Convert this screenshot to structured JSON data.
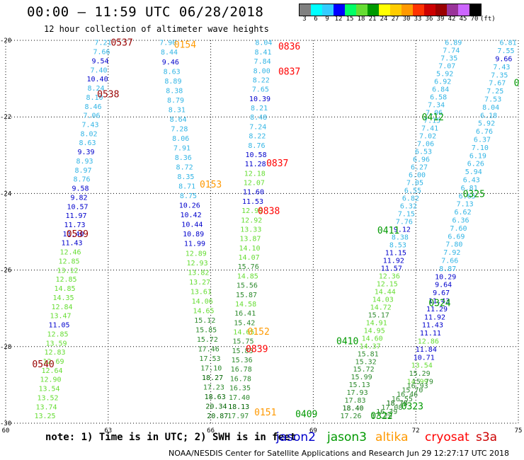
{
  "title": "00:00 – 11:59 UTC 06/28/2018",
  "subtitle": "12 hour collection of altimeter wave heights",
  "color_scale": {
    "labels": [
      "3",
      "6",
      "9",
      "12",
      "15",
      "18",
      "21",
      "24",
      "27",
      "30",
      "33",
      "36",
      "39",
      "42",
      "45",
      "70",
      "(ft)"
    ],
    "colors": [
      "#808080",
      "#00ffff",
      "#33ccff",
      "#0000ff",
      "#00ff66",
      "#66dd33",
      "#009900",
      "#ffff00",
      "#ffcc00",
      "#ff9900",
      "#ff3300",
      "#cc0000",
      "#990000",
      "#993399",
      "#cc66ff",
      "#000000"
    ]
  },
  "note": "note:  1) Time is in UTC;  2) SWH is in feet",
  "footer": "NOAA/NESDIS Center for Satellite Applications and Research   Jun 29 12:27:17 UTC 2018",
  "satellites": [
    {
      "name": "jason2",
      "color": "#0000cc"
    },
    {
      "name": "jason3",
      "color": "#009900"
    },
    {
      "name": "altika",
      "color": "#ff9900"
    },
    {
      "name": "cryosat",
      "color": "#ff0000"
    },
    {
      "name": "s3a",
      "color": "#cc0000"
    }
  ],
  "chart_data": {
    "type": "scatter",
    "xlim": [
      60,
      75
    ],
    "ylim": [
      -30,
      -20
    ],
    "xticks": [
      "60",
      "63",
      "66",
      "69",
      "72",
      "75"
    ],
    "yticks": [
      "-20",
      "-22",
      "-24",
      "-26",
      "-28",
      "-30"
    ],
    "grid": true,
    "tracks": [
      {
        "x0": 62.85,
        "y0": -20.05,
        "x1": 61.15,
        "y1": -29.8,
        "values": [
          "7.21",
          "7.66",
          "9.54",
          "7.40",
          "10.40",
          "8.24",
          "8.10",
          "8.46",
          "7.06",
          "7.43",
          "8.02",
          "8.63",
          "9.39",
          "8.93",
          "8.97",
          "8.76",
          "9.58",
          "9.82",
          "10.57",
          "11.97",
          "11.73",
          "11.40",
          "11.43",
          "12.46",
          "12.85",
          "13.12",
          "12.85",
          "14.85",
          "14.35",
          "12.84",
          "13.47",
          "11.05",
          "12.85",
          "13.59",
          "12.83",
          "12.69",
          "12.64",
          "12.90",
          "13.54",
          "13.52",
          "13.74",
          "13.25"
        ]
      },
      {
        "x0": 64.75,
        "y0": -20.05,
        "x1": 66.2,
        "y1": -29.8,
        "values": [
          "7.90",
          "8.44",
          "9.46",
          "8.63",
          "8.89",
          "8.38",
          "8.79",
          "8.31",
          "8.64",
          "7.28",
          "8.06",
          "7.91",
          "8.36",
          "8.72",
          "8.35",
          "8.71",
          "8.75",
          "10.26",
          "10.42",
          "10.44",
          "10.89",
          "11.99",
          "12.89",
          "12.93",
          "13.82",
          "13.27",
          "13.61",
          "14.06",
          "14.65",
          "15.12",
          "15.85",
          "15.72",
          "17.46",
          "17.53",
          "17.10",
          "18.27",
          "17.23",
          "18.63",
          "20.34",
          "20.87"
        ]
      },
      {
        "x0": 67.55,
        "y0": -20.05,
        "x1": 66.8,
        "y1": -29.8,
        "values": [
          "8.04",
          "8.41",
          "7.84",
          "8.00",
          "8.22",
          "7.65",
          "10.39",
          "8.21",
          "8.48",
          "7.24",
          "8.22",
          "8.76",
          "10.58",
          "11.28",
          "12.18",
          "12.07",
          "11.60",
          "11.53",
          "12.99",
          "12.92",
          "13.33",
          "13.87",
          "14.10",
          "14.07",
          "15.76",
          "14.85",
          "15.56",
          "15.87",
          "14.58",
          "16.41",
          "15.42",
          "14.65",
          "15.75",
          "15.85",
          "15.36",
          "16.78",
          "16.78",
          "16.35",
          "17.40",
          "18.13",
          "17.97"
        ]
      },
      {
        "x0": 74.7,
        "y0": -20.05,
        "x1": 72.05,
        "y1": -28.9,
        "values": [
          "6.81",
          "7.55",
          "9.66",
          "7.43",
          "7.35",
          "7.67",
          "7.25",
          "7.53",
          "8.04",
          "6.18",
          "5.92",
          "6.76",
          "6.37",
          "7.10",
          "6.19",
          "6.26",
          "5.94",
          "6.43",
          "6.81",
          "6.65",
          "7.13",
          "6.62",
          "6.36",
          "7.60",
          "6.69",
          "7.80",
          "7.92",
          "7.66",
          "8.87",
          "10.29",
          "9.64",
          "9.67",
          "11.43",
          "11.29",
          "11.92",
          "11.43",
          "11.11",
          "12.86",
          "11.84",
          "10.71",
          "13.54",
          "15.29",
          "14.99"
        ]
      },
      {
        "x0": 73.1,
        "y0": -20.05,
        "x1": 70.1,
        "y1": -29.8,
        "values": [
          "6.89",
          "7.74",
          "7.35",
          "7.07",
          "5.92",
          "6.92",
          "6.84",
          "6.58",
          "7.34",
          "7.06",
          "7.15",
          "7.41",
          "7.02",
          "7.06",
          "6.53",
          "6.96",
          "6.27",
          "6.00",
          "7.05",
          "6.55",
          "6.82",
          "6.32",
          "7.15",
          "7.76",
          "9.12",
          "8.38",
          "8.53",
          "11.15",
          "11.92",
          "11.57",
          "12.36",
          "12.15",
          "14.44",
          "14.03",
          "14.72",
          "15.17",
          "14.91",
          "14.95",
          "14.60",
          "14.37",
          "15.81",
          "15.32",
          "15.72",
          "15.99",
          "15.13",
          "17.93",
          "17.83",
          "18.40",
          "17.26"
        ]
      },
      {
        "x0": 72.2,
        "y0": -28.9,
        "x1": 71.0,
        "y1": -29.8,
        "values": [
          "15.79",
          "16.93",
          "15.70",
          "16.46",
          "16.55",
          "18.78",
          "17.08",
          "16.39",
          "17.29"
        ]
      }
    ],
    "times": [
      {
        "label": "0537",
        "x": 63.4,
        "y": -20.05,
        "color": "#990000"
      },
      {
        "label": "0538",
        "x": 63.0,
        "y": -21.4,
        "color": "#990000"
      },
      {
        "label": "0539",
        "x": 62.1,
        "y": -25.05,
        "color": "#990000"
      },
      {
        "label": "0540",
        "x": 61.1,
        "y": -28.45,
        "color": "#990000"
      },
      {
        "label": "0154",
        "x": 65.25,
        "y": -20.1,
        "color": "#ff9900"
      },
      {
        "label": "0153",
        "x": 66.0,
        "y": -23.75,
        "color": "#ff9900"
      },
      {
        "label": "0152",
        "x": 67.4,
        "y": -27.6,
        "color": "#ff9900"
      },
      {
        "label": "0151",
        "x": 67.6,
        "y": -29.7,
        "color": "#ff9900"
      },
      {
        "label": "0836",
        "x": 68.3,
        "y": -20.15,
        "color": "#ff0000"
      },
      {
        "label": "0837",
        "x": 68.3,
        "y": -20.8,
        "color": "#ff0000"
      },
      {
        "label": "0837",
        "x": 67.95,
        "y": -23.2,
        "color": "#ff0000"
      },
      {
        "label": "0838",
        "x": 67.7,
        "y": -24.45,
        "color": "#ff0000"
      },
      {
        "label": "0839",
        "x": 67.35,
        "y": -28.05,
        "color": "#ff0000"
      },
      {
        "label": "0412",
        "x": 72.5,
        "y": -22.0,
        "color": "#009900"
      },
      {
        "label": "0411",
        "x": 71.2,
        "y": -24.95,
        "color": "#009900"
      },
      {
        "label": "0410",
        "x": 70.0,
        "y": -27.85,
        "color": "#009900"
      },
      {
        "label": "0409",
        "x": 68.8,
        "y": -29.75,
        "color": "#009900"
      },
      {
        "label": "0325",
        "x": 73.7,
        "y": -24.0,
        "color": "#009900"
      },
      {
        "label": "0324",
        "x": 72.7,
        "y": -26.85,
        "color": "#009900"
      },
      {
        "label": "0323",
        "x": 71.9,
        "y": -29.55,
        "color": "#009900"
      },
      {
        "label": "0322",
        "x": 71.0,
        "y": -29.8,
        "color": "#009900"
      },
      {
        "label": "0",
        "x": 74.95,
        "y": -21.1,
        "color": "#009900"
      }
    ]
  }
}
